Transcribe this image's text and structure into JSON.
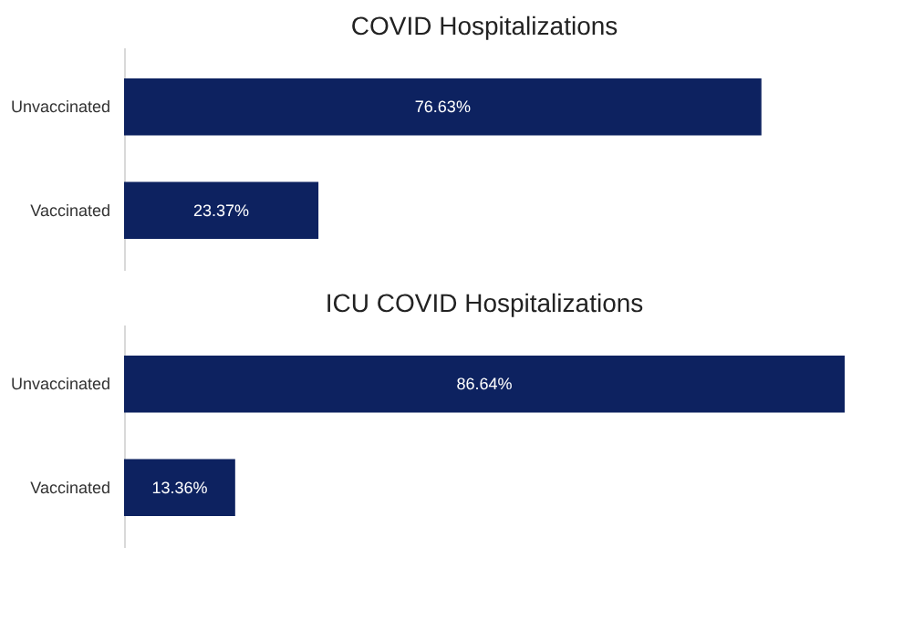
{
  "chart_data": [
    {
      "type": "bar",
      "orientation": "horizontal",
      "title": "COVID Hospitalizations",
      "categories": [
        "Unvaccinated",
        "Vaccinated"
      ],
      "values": [
        76.63,
        23.37
      ],
      "value_labels": [
        "76.63%",
        "23.37%"
      ],
      "color": "#0d2260",
      "tick_labels": "y"
    },
    {
      "type": "bar",
      "orientation": "horizontal",
      "title": "ICU COVID Hospitalizations",
      "categories": [
        "Unvaccinated",
        "Vaccinated"
      ],
      "values": [
        86.64,
        13.36
      ],
      "value_labels": [
        "86.64%",
        "13.36%"
      ],
      "color": "#0d2260",
      "tick_labels": "y"
    }
  ]
}
